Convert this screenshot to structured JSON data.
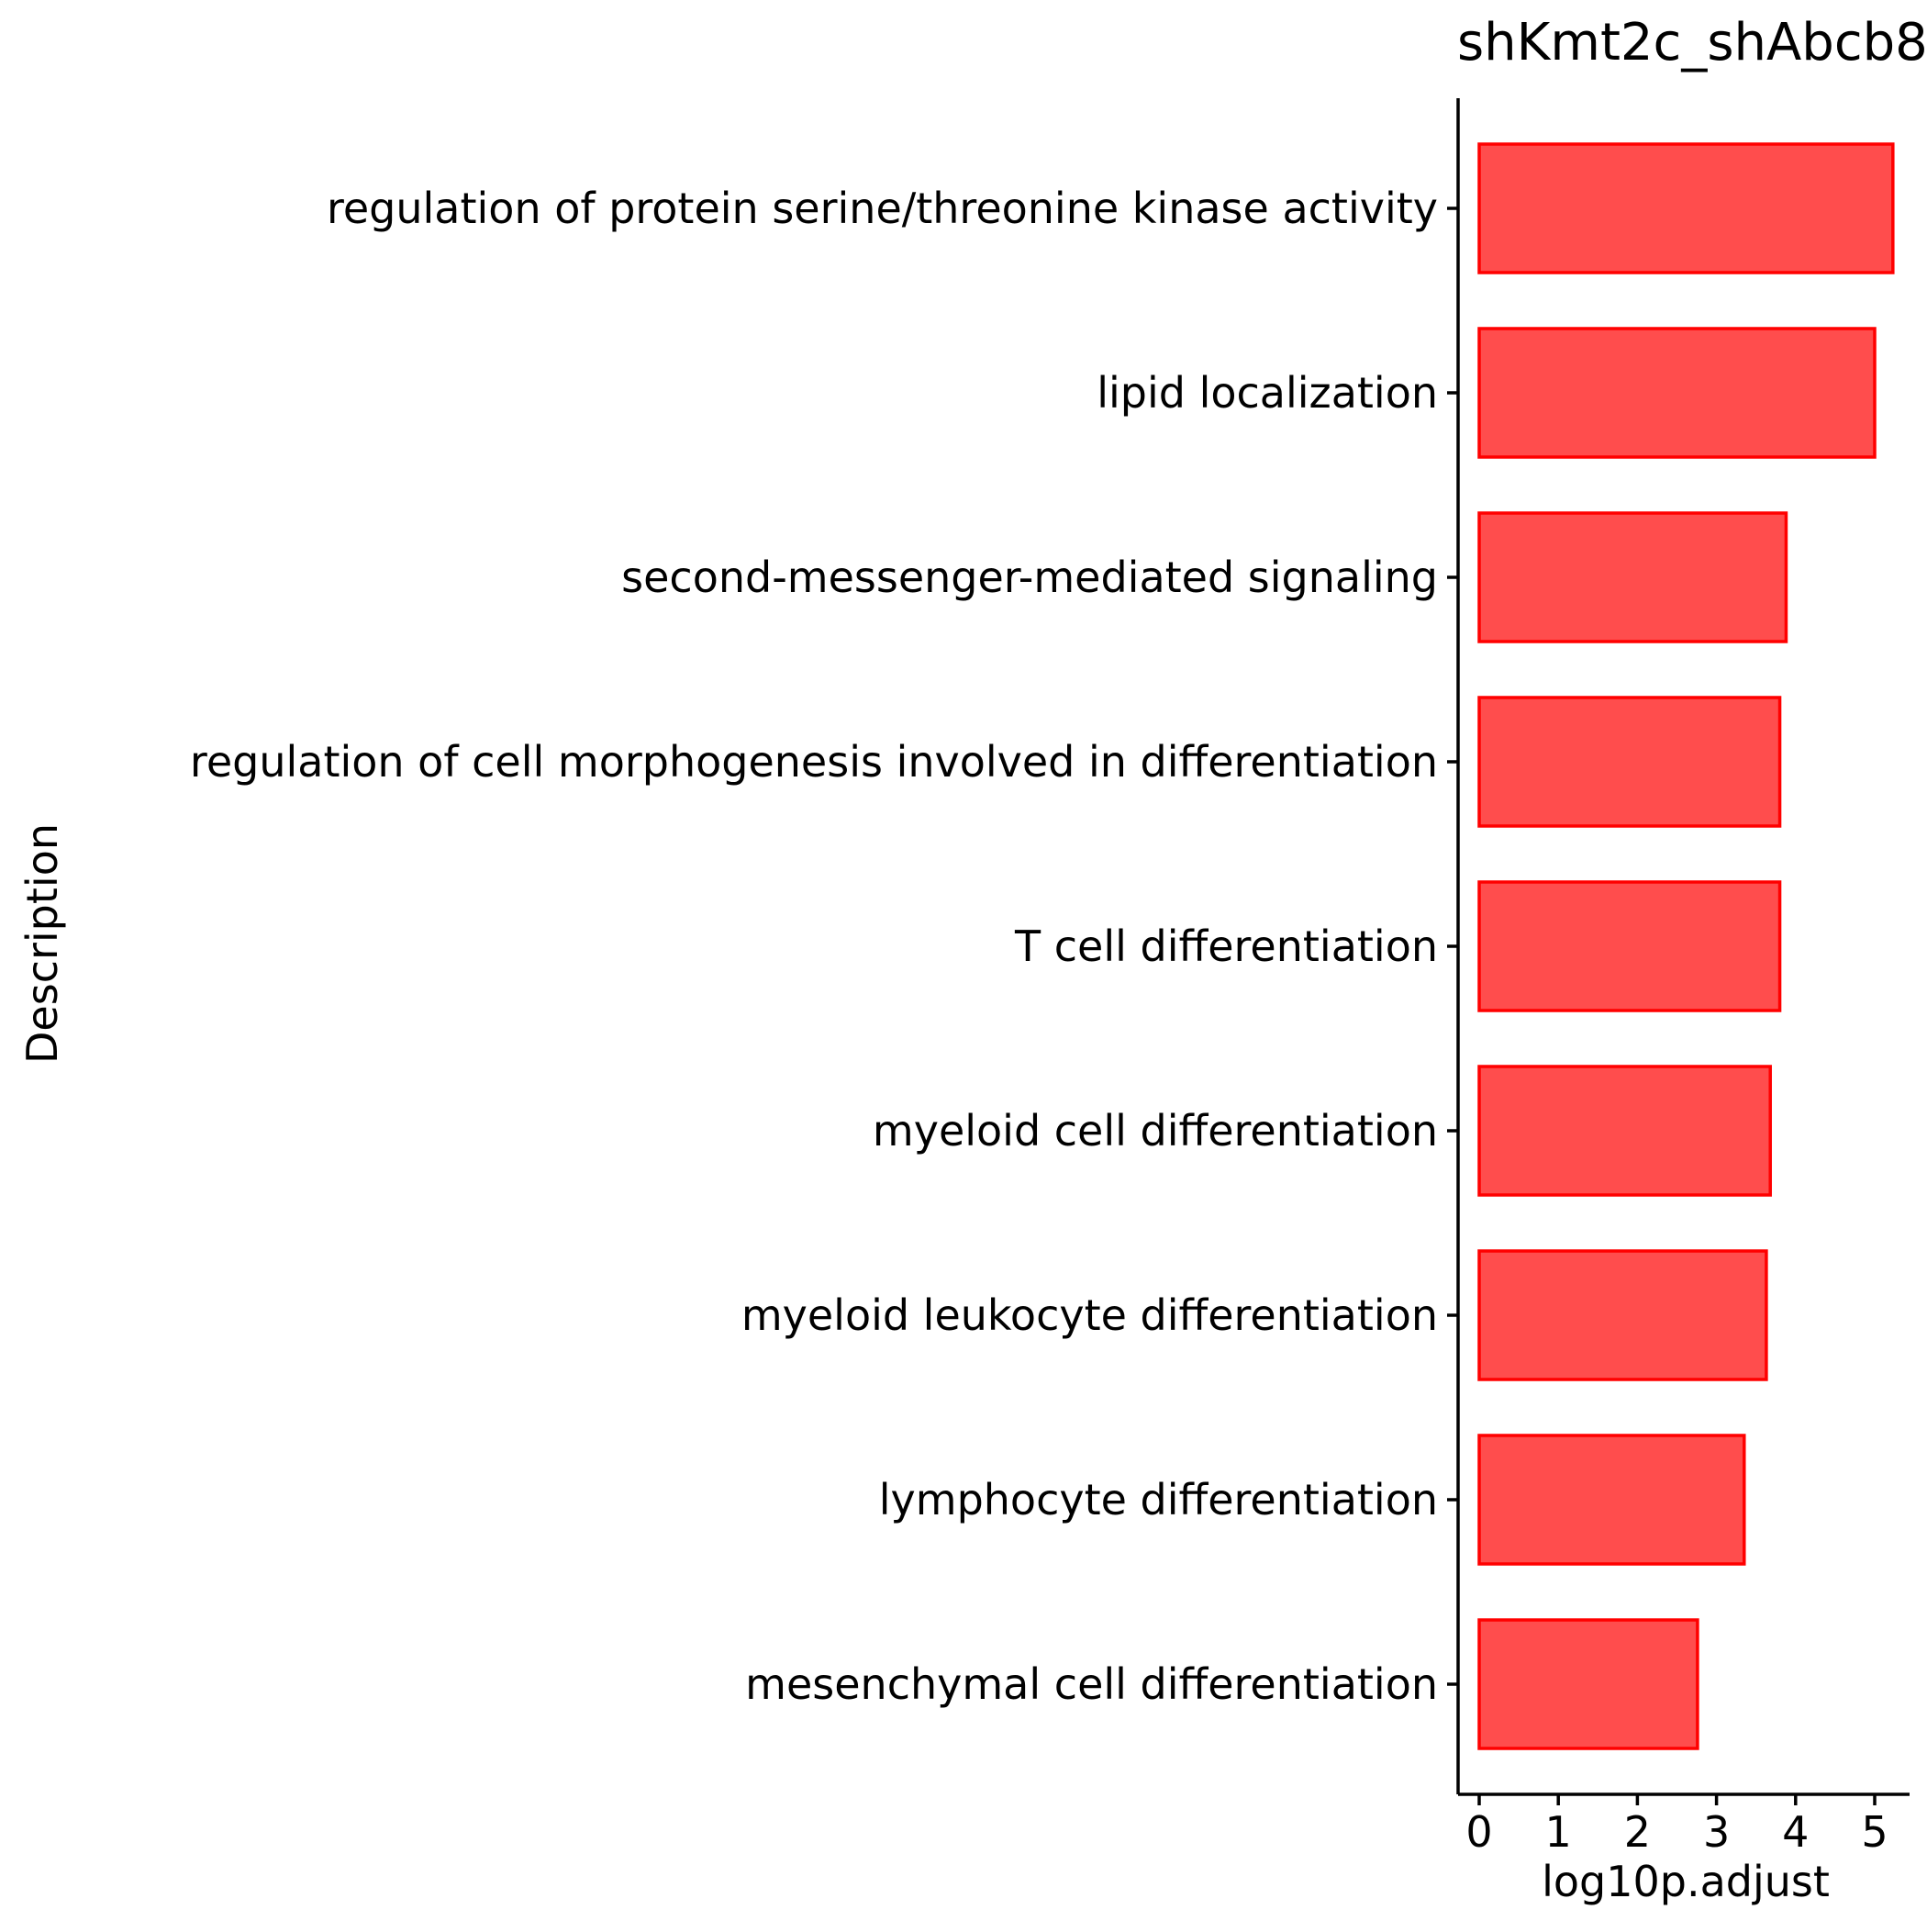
{
  "chart_data": {
    "type": "bar",
    "orientation": "horizontal",
    "title": "shKmt2c_shAbcb8",
    "xlabel": "log10p.adjust",
    "ylabel": "Description",
    "categories": [
      "regulation of protein serine/threonine kinase activity",
      "lipid localization",
      "second-messenger-mediated signaling",
      "regulation of cell morphogenesis involved in differentiation",
      "T cell differentiation",
      "myeloid cell differentiation",
      "myeloid leukocyte differentiation",
      "lymphocyte differentiation",
      "mesenchymal cell differentiation"
    ],
    "values": [
      5.23,
      5.0,
      3.88,
      3.8,
      3.8,
      3.68,
      3.63,
      3.35,
      2.76
    ],
    "x_ticks": [
      0,
      1,
      2,
      3,
      4,
      5
    ],
    "xlim": [
      -0.25,
      5.45
    ],
    "grid": false,
    "legend": "none",
    "colors": {
      "bar_fill": "#ff4d4d",
      "bar_stroke": "#ff0000",
      "axis": "#000000"
    }
  }
}
